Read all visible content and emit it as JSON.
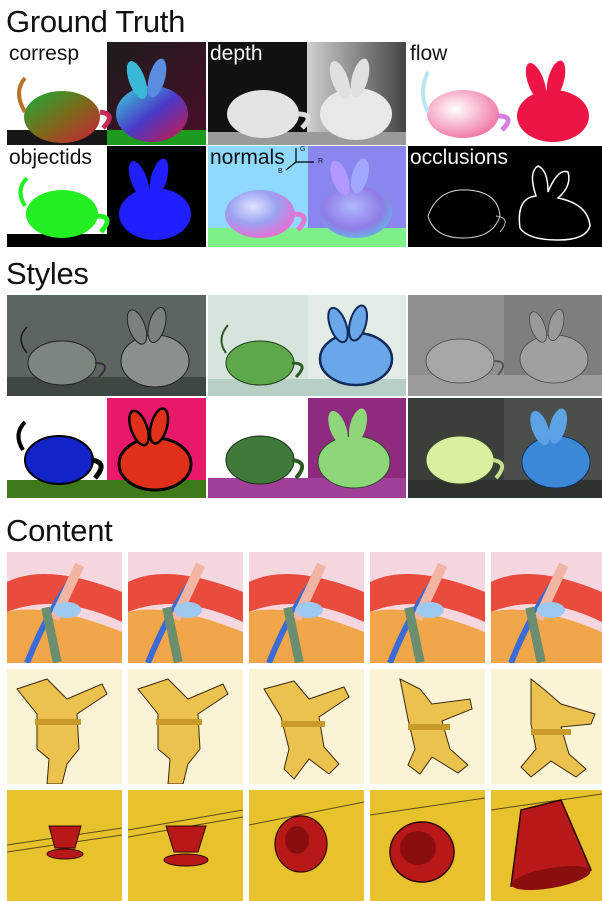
{
  "sections": {
    "ground_truth_title": "Ground Truth",
    "styles_title": "Styles",
    "content_title": "Content"
  },
  "ground_truth": {
    "labels": [
      "corresp",
      "depth",
      "flow",
      "objectids",
      "normals",
      "occlusions"
    ],
    "normals_axes": {
      "g": "G",
      "r": "R",
      "b": "B"
    }
  },
  "colors": {
    "objectids_teapot": "#22ee22",
    "objectids_bunny": "#1f1fff",
    "flow_bunny": "#ee1144",
    "styles_blue_teapot": "#1224c8",
    "styles_red_bunny": "#e0301a",
    "styles_magenta_bg": "#e8186a",
    "content_red_object": "#b81818",
    "content_yellow_bg": "#e7c22c"
  }
}
